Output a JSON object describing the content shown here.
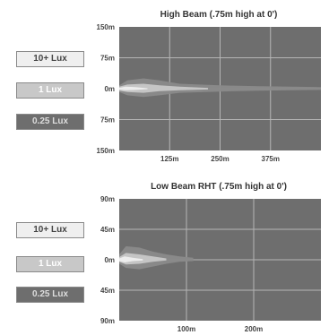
{
  "legend": {
    "items": [
      {
        "label": "10+ Lux",
        "color": "#efefef"
      },
      {
        "label": "1 Lux",
        "color": "#c8c8c8"
      },
      {
        "label": "0.25 Lux",
        "color": "#6e6e6e"
      }
    ]
  },
  "chart_data": [
    {
      "type": "area",
      "title": "High Beam (.75m high at 0')",
      "xlabel": "",
      "ylabel": "",
      "xlim": [
        0,
        500
      ],
      "ylim": [
        -150,
        150
      ],
      "x_ticks": [
        125,
        250,
        375
      ],
      "x_tick_labels": [
        "125m",
        "250m",
        "375m"
      ],
      "y_ticks": [
        150,
        75,
        0,
        -75,
        -150
      ],
      "y_tick_labels": [
        "150m",
        "75m",
        "0m",
        "75m",
        "150m"
      ],
      "grid": true,
      "background": "#6e6e6e",
      "series": [
        {
          "name": "0.25 Lux",
          "color": "#8a8a8a",
          "x": [
            0,
            20,
            60,
            100,
            150,
            250,
            350,
            430,
            500
          ],
          "upper": [
            8,
            20,
            25,
            20,
            12,
            8,
            6,
            5,
            4
          ],
          "lower": [
            -8,
            -16,
            -20,
            -16,
            -10,
            -7,
            -5,
            -4,
            -3
          ]
        },
        {
          "name": "1 Lux",
          "color": "#c8c8c8",
          "x": [
            0,
            20,
            60,
            100,
            150,
            220
          ],
          "upper": [
            5,
            10,
            12,
            8,
            5,
            2
          ],
          "lower": [
            -5,
            -8,
            -10,
            -6,
            -4,
            -2
          ]
        },
        {
          "name": "10+ Lux",
          "color": "#efefef",
          "x": [
            0,
            15,
            40,
            70
          ],
          "upper": [
            2,
            5,
            4,
            1
          ],
          "lower": [
            -2,
            -4,
            -3,
            -1
          ]
        }
      ]
    },
    {
      "type": "area",
      "title": "Low Beam RHT (.75m high at 0')",
      "xlabel": "",
      "ylabel": "",
      "xlim": [
        0,
        300
      ],
      "ylim": [
        -90,
        90
      ],
      "x_ticks": [
        100,
        200
      ],
      "x_tick_labels": [
        "100m",
        "200m"
      ],
      "y_ticks": [
        90,
        45,
        0,
        -45,
        -90
      ],
      "y_tick_labels": [
        "90m",
        "45m",
        "0m",
        "45m",
        "90m"
      ],
      "grid": true,
      "background": "#6e6e6e",
      "series": [
        {
          "name": "0.25 Lux",
          "color": "#8a8a8a",
          "x": [
            0,
            10,
            30,
            50,
            70,
            90,
            110
          ],
          "upper": [
            8,
            20,
            18,
            12,
            8,
            5,
            3
          ],
          "lower": [
            -6,
            -12,
            -14,
            -10,
            -6,
            -3,
            -2
          ]
        },
        {
          "name": "1 Lux",
          "color": "#c8c8c8",
          "x": [
            0,
            10,
            30,
            50,
            70
          ],
          "upper": [
            4,
            10,
            8,
            5,
            2
          ],
          "lower": [
            -3,
            -7,
            -6,
            -3,
            -1
          ]
        },
        {
          "name": "10+ Lux",
          "color": "#efefef",
          "x": [
            0,
            8,
            20,
            35
          ],
          "upper": [
            2,
            5,
            3,
            1
          ],
          "lower": [
            -2,
            -4,
            -2,
            -1
          ]
        }
      ]
    }
  ]
}
